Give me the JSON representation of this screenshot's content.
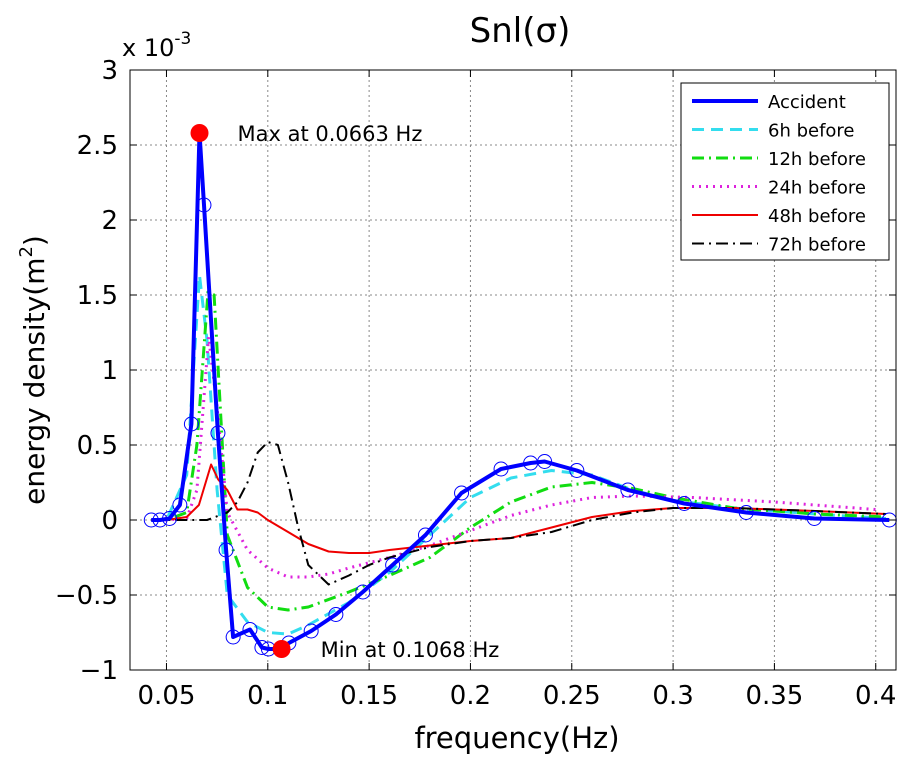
{
  "chart_data": {
    "type": "line",
    "title": "Snl(σ)",
    "xlabel": "frequency(Hz)",
    "ylabel": "energy density(m",
    "ylabel_sup": "2",
    "ylabel_close": ")",
    "y_exponent_label": "x 10",
    "y_exponent_power": "-3",
    "xlim": [
      0.032,
      0.41
    ],
    "ylim": [
      -1,
      3
    ],
    "xticks": [
      0.05,
      0.1,
      0.15,
      0.2,
      0.25,
      0.3,
      0.35,
      0.4
    ],
    "xtick_labels": [
      "0.05",
      "0.1",
      "0.15",
      "0.2",
      "0.25",
      "0.3",
      "0.35",
      "0.4"
    ],
    "yticks": [
      -1,
      -0.5,
      0,
      0.5,
      1,
      1.5,
      2,
      2.5,
      3
    ],
    "ytick_labels": [
      "−1",
      "−0.5",
      "0",
      "0.5",
      "1",
      "1.5",
      "2",
      "2.5",
      "3"
    ],
    "grid": true,
    "legend_position": "top-right",
    "series": [
      {
        "name": "Accident",
        "color": "#0000ff",
        "style": "solid",
        "width": 4,
        "markers": true,
        "x": [
          0.0425,
          0.0468,
          0.0515,
          0.0566,
          0.0623,
          0.0663,
          0.0685,
          0.0754,
          0.0794,
          0.0829,
          0.0912,
          0.0971,
          0.1003,
          0.1068,
          0.1104,
          0.1214,
          0.1336,
          0.1469,
          0.1616,
          0.1778,
          0.1956,
          0.2151,
          0.2297,
          0.2366,
          0.2525,
          0.2777,
          0.3055,
          0.3361,
          0.3697,
          0.4067
        ],
        "y": [
          0,
          0,
          0.01,
          0.1,
          0.64,
          2.58,
          2.1,
          0.58,
          -0.2,
          -0.78,
          -0.73,
          -0.85,
          -0.86,
          -0.86,
          -0.82,
          -0.74,
          -0.63,
          -0.48,
          -0.3,
          -0.1,
          0.18,
          0.34,
          0.38,
          0.39,
          0.33,
          0.2,
          0.11,
          0.05,
          0.01,
          0
        ]
      },
      {
        "name": "6h before",
        "color": "#33ddee",
        "style": "dashed",
        "width": 3,
        "markers": false,
        "x": [
          0.0425,
          0.05,
          0.06,
          0.0663,
          0.07,
          0.075,
          0.08,
          0.09,
          0.1,
          0.11,
          0.12,
          0.14,
          0.16,
          0.18,
          0.2,
          0.22,
          0.24,
          0.26,
          0.28,
          0.3,
          0.33,
          0.37,
          0.405
        ],
        "y": [
          0,
          0,
          0.3,
          1.63,
          1.2,
          0.2,
          -0.5,
          -0.68,
          -0.75,
          -0.76,
          -0.7,
          -0.55,
          -0.35,
          -0.1,
          0.15,
          0.28,
          0.33,
          0.3,
          0.2,
          0.13,
          0.08,
          0.04,
          0.01
        ]
      },
      {
        "name": "12h before",
        "color": "#11dd11",
        "style": "dashdot",
        "width": 3,
        "markers": false,
        "x": [
          0.0425,
          0.05,
          0.06,
          0.065,
          0.0705,
          0.0735,
          0.08,
          0.09,
          0.1,
          0.11,
          0.12,
          0.14,
          0.16,
          0.18,
          0.2,
          0.22,
          0.24,
          0.26,
          0.28,
          0.3,
          0.33,
          0.37,
          0.405
        ],
        "y": [
          0,
          0,
          0.05,
          0.5,
          1.52,
          1.5,
          -0.1,
          -0.45,
          -0.58,
          -0.6,
          -0.58,
          -0.48,
          -0.37,
          -0.25,
          -0.05,
          0.12,
          0.22,
          0.25,
          0.21,
          0.15,
          0.08,
          0.04,
          0.02
        ]
      },
      {
        "name": "24h before",
        "color": "#dd22dd",
        "style": "dotted",
        "width": 3,
        "markers": false,
        "x": [
          0.0425,
          0.05,
          0.06,
          0.065,
          0.0708,
          0.075,
          0.08,
          0.09,
          0.1,
          0.11,
          0.12,
          0.13,
          0.14,
          0.16,
          0.18,
          0.2,
          0.22,
          0.24,
          0.26,
          0.28,
          0.31,
          0.35,
          0.4
        ],
        "y": [
          0,
          0,
          0.01,
          0.2,
          1.22,
          0.75,
          0.05,
          -0.2,
          -0.32,
          -0.38,
          -0.38,
          -0.36,
          -0.32,
          -0.25,
          -0.17,
          -0.07,
          0.03,
          0.1,
          0.15,
          0.16,
          0.15,
          0.12,
          0.07
        ]
      },
      {
        "name": "48h before",
        "color": "#ee0000",
        "style": "solid",
        "width": 2,
        "markers": false,
        "x": [
          0.0425,
          0.05,
          0.06,
          0.066,
          0.072,
          0.0755,
          0.08,
          0.085,
          0.09,
          0.095,
          0.1,
          0.11,
          0.12,
          0.13,
          0.14,
          0.15,
          0.16,
          0.18,
          0.2,
          0.22,
          0.24,
          0.26,
          0.28,
          0.3,
          0.33,
          0.37,
          0.405
        ],
        "y": [
          0,
          0,
          0.02,
          0.1,
          0.37,
          0.27,
          0.2,
          0.07,
          0.07,
          0.05,
          0.0,
          -0.08,
          -0.16,
          -0.21,
          -0.22,
          -0.22,
          -0.2,
          -0.17,
          -0.14,
          -0.12,
          -0.05,
          0.02,
          0.06,
          0.08,
          0.08,
          0.06,
          0.04
        ]
      },
      {
        "name": "72h before",
        "color": "#000000",
        "style": "dashdot",
        "width": 2,
        "markers": false,
        "x": [
          0.0425,
          0.05,
          0.07,
          0.08,
          0.085,
          0.09,
          0.095,
          0.1,
          0.105,
          0.11,
          0.115,
          0.12,
          0.13,
          0.14,
          0.15,
          0.16,
          0.18,
          0.2,
          0.22,
          0.24,
          0.26,
          0.28,
          0.3,
          0.33,
          0.37,
          0.405
        ],
        "y": [
          0,
          0,
          0,
          0.05,
          0.12,
          0.25,
          0.45,
          0.52,
          0.5,
          0.25,
          -0.05,
          -0.3,
          -0.43,
          -0.37,
          -0.3,
          -0.25,
          -0.18,
          -0.14,
          -0.12,
          -0.08,
          0.0,
          0.05,
          0.08,
          0.08,
          0.06,
          0.04
        ]
      }
    ],
    "annotations": [
      {
        "text": "Max at 0.0663 Hz",
        "x": 0.0663,
        "y": 2.58,
        "marker_color": "#ff0000"
      },
      {
        "text": "Min at 0.1068 Hz",
        "x": 0.1068,
        "y": -0.86,
        "marker_color": "#ff0000"
      }
    ]
  }
}
